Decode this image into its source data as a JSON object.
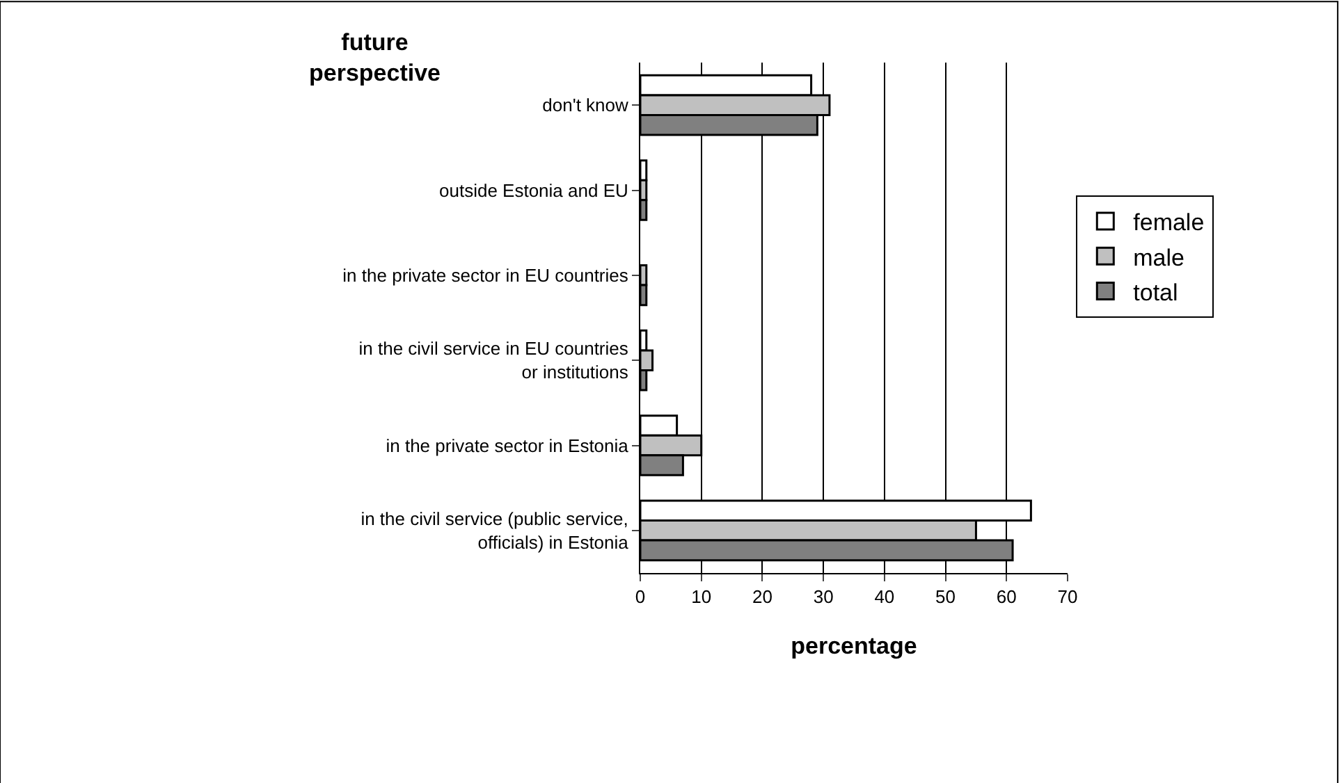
{
  "chart_data": {
    "type": "bar",
    "orientation": "horizontal",
    "ylabel": "future perspective",
    "xlabel": "percentage",
    "categories": [
      "don't know",
      "outside Estonia and EU",
      "in the private sector in EU countries",
      "in the civil service in EU countries or institutions",
      "in the private sector in Estonia",
      "in the civil service (public service, officials) in Estonia"
    ],
    "series": [
      {
        "name": "female",
        "color": "#ffffff",
        "values": [
          28,
          1,
          0,
          1,
          6,
          64
        ]
      },
      {
        "name": "male",
        "color": "#c0c0c0",
        "values": [
          31,
          1,
          1,
          2,
          10,
          55
        ]
      },
      {
        "name": "total",
        "color": "#808080",
        "values": [
          29,
          1,
          1,
          1,
          7,
          61
        ]
      }
    ],
    "xlim": [
      0,
      70
    ],
    "xticks": [
      0,
      10,
      20,
      30,
      40,
      50,
      60,
      70
    ],
    "grid": "x",
    "legend": "right"
  }
}
